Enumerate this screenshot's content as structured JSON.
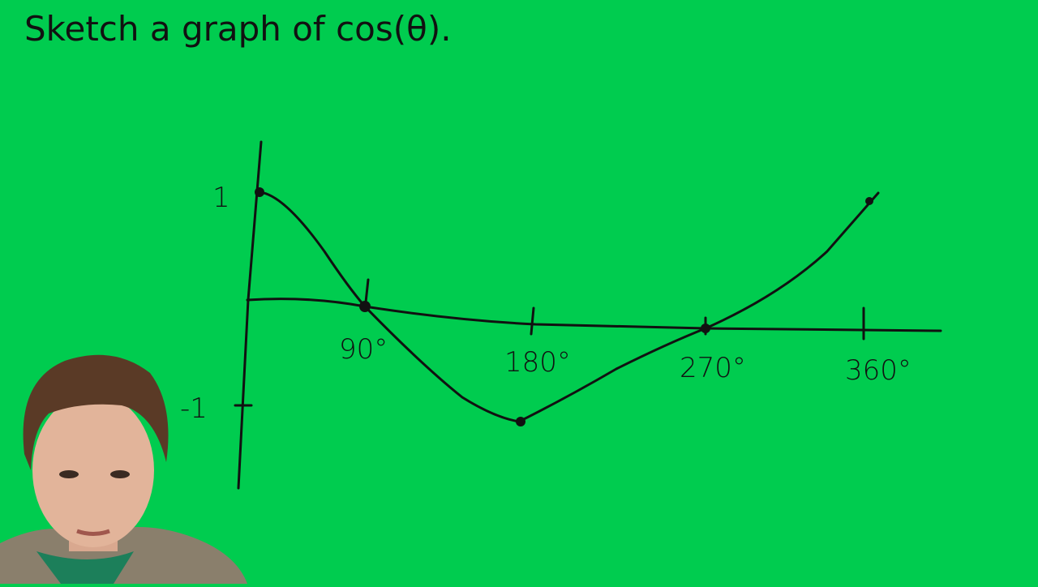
{
  "title": "Sketch a graph of cos(θ).",
  "sketch": {
    "y_labels": [
      "1",
      "-1"
    ],
    "x_labels": [
      "90°",
      "180°",
      "270°",
      "360°"
    ]
  }
}
